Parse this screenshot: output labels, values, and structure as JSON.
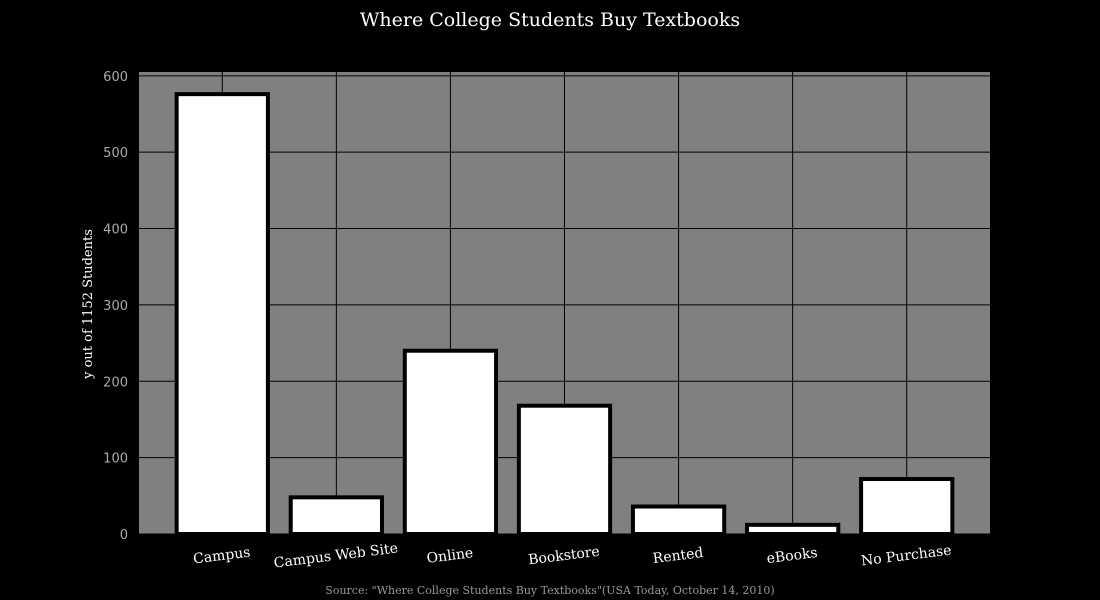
{
  "chart_data": {
    "type": "bar",
    "title": "Where College Students Buy Textbooks",
    "xlabel": "",
    "ylabel": "y out of 1152 Students",
    "source": "Source: \"Where College Students Buy Textbooks\"(USA Today, October 14, 2010)",
    "categories": [
      "Campus",
      "Campus Web Site",
      "Online",
      "Bookstore",
      "Rented",
      "eBooks",
      "No Purchase"
    ],
    "values": [
      576,
      48,
      240,
      168,
      36,
      12,
      72
    ],
    "ylim": [
      0,
      605
    ],
    "yticks": [
      0,
      100,
      200,
      300,
      400,
      500,
      600
    ],
    "grid": true,
    "legend": "none",
    "colors": {
      "background": "#000000",
      "plot_background": "#808080",
      "bar_fill": "#ffffff",
      "bar_edge": "#000000",
      "grid": "#000000",
      "title": "#ffffff",
      "tick_label_y": "#aaaaaa",
      "tick_label_x": "#ffffff",
      "source": "#999999"
    }
  }
}
